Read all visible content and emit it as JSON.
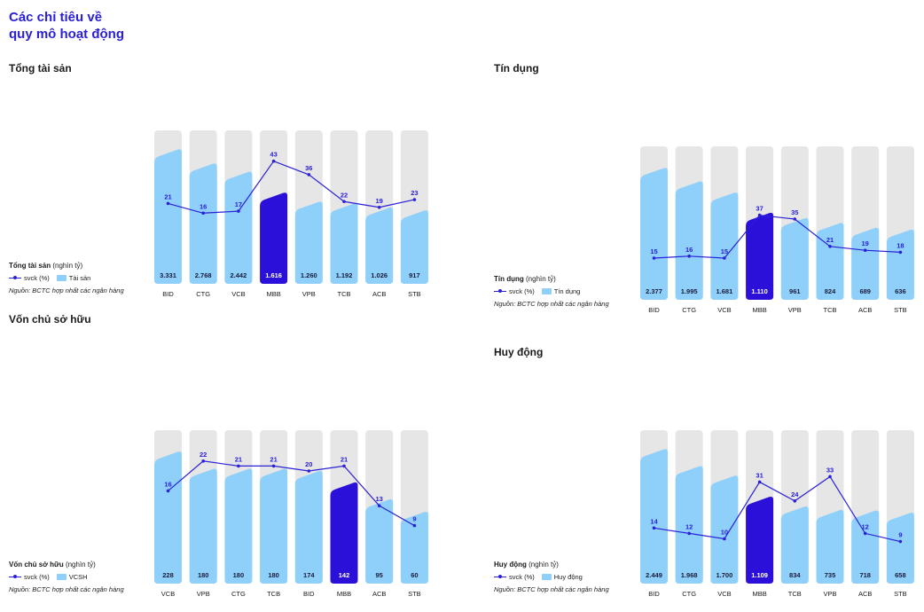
{
  "header": {
    "title_line1": "Các chỉ tiêu về",
    "title_line2": "quy mô hoạt động"
  },
  "colors": {
    "track": "#e6e6e6",
    "bar": "#8fd0fa",
    "highlight": "#2a10d8",
    "line": "#2a20d6",
    "value_dark": "#1a1a3a",
    "value_light": "#ffffff"
  },
  "legend_labels": {
    "line_label": "svck (%)",
    "unit": "(nghìn tỷ)",
    "source": "Nguồn: BCTC hợp nhất các ngân hàng"
  },
  "chart_data": [
    {
      "id": "tong-tai-san",
      "type": "bar",
      "title": "Tổng tài sản",
      "legend_title": "Tổng tài sản",
      "bar_legend": "Tài sản",
      "categories": [
        "BID",
        "CTG",
        "VCB",
        "MBB",
        "VPB",
        "TCB",
        "ACB",
        "STB"
      ],
      "values": [
        3331,
        2768,
        2442,
        1616,
        1260,
        1192,
        1026,
        917
      ],
      "value_labels": [
        "3.331",
        "2.768",
        "2.442",
        "1.616",
        "1.260",
        "1.192",
        "1.026",
        "917"
      ],
      "growth": [
        21,
        16,
        17,
        43,
        36,
        22,
        19,
        23
      ],
      "highlight": "MBB"
    },
    {
      "id": "tin-dung",
      "type": "bar",
      "title": "Tín dụng",
      "legend_title": "Tín dụng",
      "bar_legend": "Tín dụng",
      "categories": [
        "BID",
        "CTG",
        "VCB",
        "MBB",
        "VPB",
        "TCB",
        "ACB",
        "STB"
      ],
      "values": [
        2377,
        1995,
        1681,
        1110,
        961,
        824,
        689,
        636
      ],
      "value_labels": [
        "2.377",
        "1.995",
        "1.681",
        "1.110",
        "961",
        "824",
        "689",
        "636"
      ],
      "growth": [
        15,
        16,
        15,
        37,
        35,
        21,
        19,
        18
      ],
      "highlight": "MBB"
    },
    {
      "id": "von-chu-so-huu",
      "type": "bar",
      "title": "Vốn chủ sở hữu",
      "legend_title": "Vốn chủ sở hữu",
      "bar_legend": "VCSH",
      "categories": [
        "VCB",
        "VPB",
        "CTG",
        "TCB",
        "BID",
        "MBB",
        "ACB",
        "STB"
      ],
      "values": [
        228,
        180,
        180,
        180,
        174,
        142,
        95,
        60
      ],
      "value_labels": [
        "228",
        "180",
        "180",
        "180",
        "174",
        "142",
        "95",
        "60"
      ],
      "growth": [
        16,
        22,
        21,
        21,
        20,
        21,
        13,
        9
      ],
      "highlight": "MBB"
    },
    {
      "id": "huy-dong",
      "type": "bar",
      "title": "Huy động",
      "legend_title": "Huy động",
      "bar_legend": "Huy động",
      "categories": [
        "BID",
        "CTG",
        "VCB",
        "MBB",
        "TCB",
        "VPB",
        "ACB",
        "STB"
      ],
      "values": [
        2449,
        1968,
        1700,
        1109,
        834,
        735,
        718,
        658
      ],
      "value_labels": [
        "2.449",
        "1.968",
        "1.700",
        "1.109",
        "834",
        "735",
        "718",
        "658"
      ],
      "growth": [
        14,
        12,
        10,
        31,
        24,
        33,
        12,
        9
      ],
      "highlight": "MBB"
    }
  ]
}
